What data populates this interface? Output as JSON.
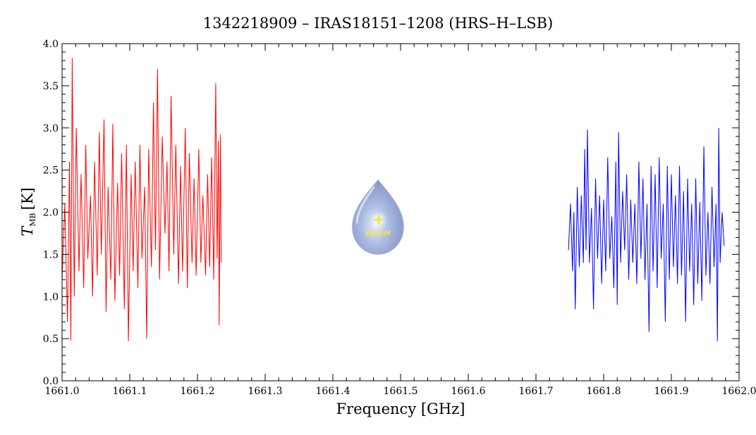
{
  "chart_data": {
    "type": "line",
    "title": "1342218909 – IRAS18151–1208 (HRS–H–LSB)",
    "xlabel": "Frequency [GHz]",
    "ylabel_main": "T",
    "ylabel_sub": "MB",
    "ylabel_unit": "[K]",
    "xlim": [
      1661.0,
      1662.0
    ],
    "ylim": [
      0.0,
      4.0
    ],
    "x_ticks": [
      "1661.0",
      "1661.1",
      "1661.2",
      "1661.3",
      "1661.4",
      "1661.5",
      "1661.6",
      "1661.7",
      "1661.8",
      "1661.9",
      "1662.0"
    ],
    "y_ticks": [
      "0.0",
      "0.5",
      "1.0",
      "1.5",
      "2.0",
      "2.5",
      "3.0",
      "3.5",
      "4.0"
    ],
    "series": [
      {
        "color": "#ff0000",
        "x_range": [
          1661.0,
          1661.235
        ],
        "points": [
          [
            1661.0,
            1.2
          ],
          [
            1661.004,
            2.1
          ],
          [
            1661.008,
            0.7
          ],
          [
            1661.011,
            2.6
          ],
          [
            1661.013,
            0.48
          ],
          [
            1661.015,
            3.83
          ],
          [
            1661.018,
            1.0
          ],
          [
            1661.021,
            3.0
          ],
          [
            1661.025,
            1.3
          ],
          [
            1661.028,
            2.45
          ],
          [
            1661.032,
            1.1
          ],
          [
            1661.035,
            2.8
          ],
          [
            1661.038,
            1.45
          ],
          [
            1661.042,
            2.2
          ],
          [
            1661.045,
            1.0
          ],
          [
            1661.048,
            2.6
          ],
          [
            1661.052,
            1.25
          ],
          [
            1661.055,
            2.95
          ],
          [
            1661.058,
            1.5
          ],
          [
            1661.062,
            3.1
          ],
          [
            1661.065,
            0.82
          ],
          [
            1661.068,
            2.3
          ],
          [
            1661.072,
            1.2
          ],
          [
            1661.075,
            3.05
          ],
          [
            1661.078,
            0.95
          ],
          [
            1661.082,
            2.35
          ],
          [
            1661.085,
            1.25
          ],
          [
            1661.088,
            2.7
          ],
          [
            1661.092,
            0.85
          ],
          [
            1661.095,
            2.8
          ],
          [
            1661.098,
            0.47
          ],
          [
            1661.102,
            2.45
          ],
          [
            1661.105,
            1.3
          ],
          [
            1661.108,
            2.6
          ],
          [
            1661.112,
            1.1
          ],
          [
            1661.115,
            2.8
          ],
          [
            1661.118,
            1.45
          ],
          [
            1661.122,
            2.3
          ],
          [
            1661.125,
            0.5
          ],
          [
            1661.128,
            2.75
          ],
          [
            1661.132,
            1.35
          ],
          [
            1661.135,
            3.3
          ],
          [
            1661.138,
            1.55
          ],
          [
            1661.141,
            3.7
          ],
          [
            1661.144,
            1.2
          ],
          [
            1661.148,
            2.9
          ],
          [
            1661.152,
            1.75
          ],
          [
            1661.155,
            2.6
          ],
          [
            1661.158,
            1.3
          ],
          [
            1661.161,
            3.38
          ],
          [
            1661.165,
            1.5
          ],
          [
            1661.168,
            2.8
          ],
          [
            1661.172,
            1.15
          ],
          [
            1661.175,
            2.55
          ],
          [
            1661.178,
            1.3
          ],
          [
            1661.182,
            3.0
          ],
          [
            1661.185,
            1.1
          ],
          [
            1661.188,
            2.7
          ],
          [
            1661.192,
            1.4
          ],
          [
            1661.195,
            2.4
          ],
          [
            1661.198,
            1.25
          ],
          [
            1661.202,
            2.75
          ],
          [
            1661.205,
            1.4
          ],
          [
            1661.208,
            2.2
          ],
          [
            1661.212,
            1.25
          ],
          [
            1661.215,
            2.45
          ],
          [
            1661.218,
            1.35
          ],
          [
            1661.221,
            2.65
          ],
          [
            1661.224,
            1.2
          ],
          [
            1661.227,
            3.53
          ],
          [
            1661.229,
            1.45
          ],
          [
            1661.231,
            2.85
          ],
          [
            1661.232,
            0.66
          ],
          [
            1661.234,
            2.92
          ],
          [
            1661.235,
            1.4
          ]
        ]
      },
      {
        "color": "#0000ff",
        "x_range": [
          1661.748,
          1661.978
        ],
        "points": [
          [
            1661.748,
            1.55
          ],
          [
            1661.751,
            2.1
          ],
          [
            1661.754,
            1.3
          ],
          [
            1661.756,
            2.0
          ],
          [
            1661.758,
            0.85
          ],
          [
            1661.761,
            2.3
          ],
          [
            1661.764,
            1.35
          ],
          [
            1661.767,
            2.2
          ],
          [
            1661.77,
            1.4
          ],
          [
            1661.772,
            2.75
          ],
          [
            1661.774,
            1.55
          ],
          [
            1661.776,
            2.98
          ],
          [
            1661.779,
            1.4
          ],
          [
            1661.782,
            2.05
          ],
          [
            1661.785,
            0.85
          ],
          [
            1661.788,
            2.4
          ],
          [
            1661.791,
            1.45
          ],
          [
            1661.794,
            2.2
          ],
          [
            1661.797,
            1.15
          ],
          [
            1661.8,
            2.15
          ],
          [
            1661.803,
            1.3
          ],
          [
            1661.806,
            2.65
          ],
          [
            1661.809,
            1.45
          ],
          [
            1661.812,
            1.95
          ],
          [
            1661.815,
            1.1
          ],
          [
            1661.818,
            2.6
          ],
          [
            1661.82,
            0.9
          ],
          [
            1661.822,
            2.95
          ],
          [
            1661.825,
            1.4
          ],
          [
            1661.828,
            2.25
          ],
          [
            1661.831,
            1.55
          ],
          [
            1661.834,
            2.45
          ],
          [
            1661.837,
            1.2
          ],
          [
            1661.84,
            2.15
          ],
          [
            1661.843,
            1.4
          ],
          [
            1661.846,
            2.1
          ],
          [
            1661.849,
            1.15
          ],
          [
            1661.852,
            2.6
          ],
          [
            1661.855,
            1.45
          ],
          [
            1661.858,
            2.4
          ],
          [
            1661.861,
            1.2
          ],
          [
            1661.864,
            2.1
          ],
          [
            1661.867,
            0.58
          ],
          [
            1661.87,
            2.55
          ],
          [
            1661.873,
            1.3
          ],
          [
            1661.876,
            2.45
          ],
          [
            1661.879,
            1.1
          ],
          [
            1661.882,
            2.65
          ],
          [
            1661.885,
            1.45
          ],
          [
            1661.888,
            2.1
          ],
          [
            1661.891,
            0.7
          ],
          [
            1661.894,
            2.55
          ],
          [
            1661.897,
            1.2
          ],
          [
            1661.9,
            2.45
          ],
          [
            1661.903,
            1.35
          ],
          [
            1661.906,
            2.2
          ],
          [
            1661.909,
            1.15
          ],
          [
            1661.912,
            2.55
          ],
          [
            1661.915,
            1.25
          ],
          [
            1661.918,
            2.25
          ],
          [
            1661.921,
            0.7
          ],
          [
            1661.924,
            2.4
          ],
          [
            1661.927,
            1.3
          ],
          [
            1661.93,
            2.1
          ],
          [
            1661.933,
            0.9
          ],
          [
            1661.936,
            2.4
          ],
          [
            1661.939,
            1.15
          ],
          [
            1661.942,
            2.12
          ],
          [
            1661.945,
            0.95
          ],
          [
            1661.948,
            2.78
          ],
          [
            1661.951,
            1.25
          ],
          [
            1661.954,
            2.0
          ],
          [
            1661.957,
            1.15
          ],
          [
            1661.96,
            2.3
          ],
          [
            1661.963,
            1.35
          ],
          [
            1661.966,
            2.1
          ],
          [
            1661.968,
            0.47
          ],
          [
            1661.97,
            3.0
          ],
          [
            1661.972,
            1.4
          ],
          [
            1661.975,
            2.0
          ],
          [
            1661.978,
            1.6
          ]
        ]
      }
    ],
    "grid": false,
    "legend": "none"
  },
  "watermark": {
    "text": "WISH",
    "fill_color": "#a8b8e0",
    "star_color": "#f5e04a"
  }
}
